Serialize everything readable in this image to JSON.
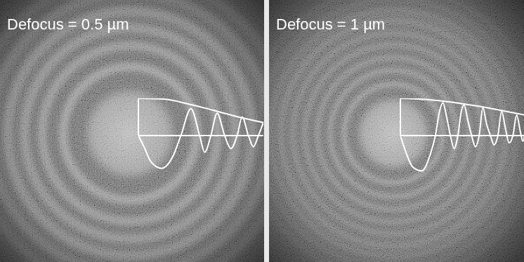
{
  "chart_data": [
    {
      "type": "line",
      "title": "Defocus = 0.5 µm",
      "xlim": [
        0,
        1
      ],
      "ylim": [
        -1,
        1
      ],
      "tick_labels": false,
      "series": [
        {
          "x": [
            0,
            0.045,
            0.1,
            0.185,
            0.27,
            0.34,
            0.42,
            0.49,
            0.53,
            0.58,
            0.63,
            0.69,
            0.74,
            0.79,
            0.83,
            0.88,
            0.92,
            0.96,
            1
          ],
          "values": [
            0,
            -0.3,
            -0.7,
            -0.88,
            -0.6,
            0,
            0.72,
            0,
            -0.45,
            0,
            0.6,
            0,
            -0.35,
            0,
            0.5,
            0,
            -0.3,
            0,
            0.35
          ],
          "color": "#ffffff"
        },
        {
          "x": [
            0,
            0.2,
            0.4,
            0.6,
            0.8,
            1
          ],
          "values": [
            1,
            0.98,
            0.85,
            0.68,
            0.5,
            0.35
          ],
          "color": "#ffffff"
        }
      ]
    },
    {
      "type": "line",
      "title": "Defocus = 1 µm",
      "xlim": [
        0,
        1
      ],
      "ylim": [
        -1,
        1
      ],
      "tick_labels": false,
      "series": [
        {
          "x": [
            0,
            0.05,
            0.1,
            0.17,
            0.24,
            0.28,
            0.31,
            0.34,
            0.37,
            0.4,
            0.43,
            0.46,
            0.49,
            0.51,
            0.54,
            0.57,
            0.6,
            0.63,
            0.66,
            0.69,
            0.72,
            0.75,
            0.78,
            0.81,
            0.84,
            0.87,
            0.9,
            0.93,
            0.96,
            0.98,
            1
          ],
          "values": [
            0,
            -0.5,
            -0.85,
            -0.95,
            -0.5,
            0,
            0.6,
            0.88,
            0.5,
            0,
            -0.35,
            0,
            0.7,
            0.82,
            0.4,
            0,
            -0.3,
            0,
            0.75,
            0.3,
            0,
            -0.25,
            0,
            0.65,
            0.2,
            -0.2,
            0,
            0.55,
            0.1,
            -0.15,
            0.2
          ],
          "color": "#ffffff"
        },
        {
          "x": [
            0,
            0.2,
            0.4,
            0.6,
            0.8,
            1
          ],
          "values": [
            1,
            0.97,
            0.9,
            0.8,
            0.68,
            0.55
          ],
          "color": "#ffffff"
        }
      ]
    }
  ]
}
